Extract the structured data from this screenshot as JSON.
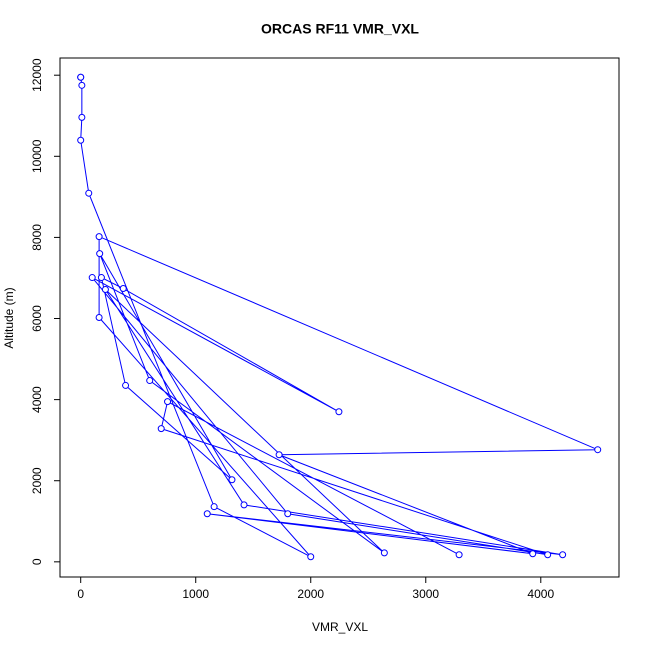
{
  "chart_data": {
    "type": "line",
    "title": "ORCAS RF11 VMR_VXL",
    "x_label": "VMR_VXL",
    "y_label": "Altitude (m)",
    "series": [
      {
        "color": "#0000ff",
        "x": [
          0,
          0,
          10,
          10,
          0,
          70,
          1160,
          2000,
          160,
          160,
          4495,
          1725,
          3930,
          1100,
          4190,
          1420,
          215,
          2640,
          600,
          165,
          1315,
          390,
          180,
          370,
          2245,
          100,
          1800,
          4060,
          700,
          755,
          3290
        ],
        "values": [
          11950,
          11950,
          11750,
          10960,
          10395,
          9090,
          1360,
          125,
          6025,
          8020,
          2765,
          2640,
          200,
          1185,
          175,
          1405,
          6715,
          220,
          4470,
          7600,
          2025,
          4350,
          7010,
          6740,
          3700,
          7010,
          1185,
          175,
          3285,
          3950,
          175
        ]
      }
    ],
    "xlim": [
      -180,
      4680
    ],
    "xticks": [
      0,
      1000,
      2000,
      3000,
      4000
    ],
    "ylim": [
      -374,
      12424
    ],
    "yticks": [
      0,
      2000,
      4000,
      6000,
      8000,
      10000,
      12000
    ]
  }
}
